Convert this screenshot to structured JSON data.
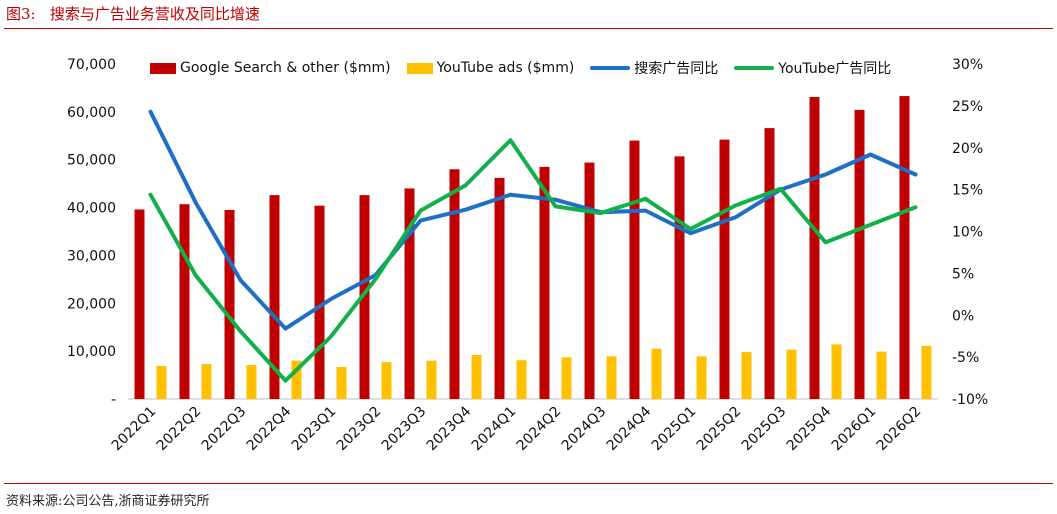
{
  "header": {
    "figure_label": "图3:",
    "title": "搜索与广告业务营收及同比增速"
  },
  "footer": {
    "source": "资料来源:公司公告,浙商证券研究所"
  },
  "colors": {
    "google_search": "#c00000",
    "youtube_ads": "#ffc000",
    "search_yoy": "#1f6fc5",
    "youtube_yoy": "#13b04a",
    "accent": "#c00000"
  },
  "chart_data": {
    "type": "bar",
    "categories": [
      "2022Q1",
      "2022Q2",
      "2022Q3",
      "2022Q4",
      "2023Q1",
      "2023Q2",
      "2023Q3",
      "2023Q4",
      "2024Q1",
      "2024Q2",
      "2024Q3",
      "2024Q4",
      "2025Q1",
      "2025Q2",
      "2025Q3",
      "2025Q4",
      "2026Q1",
      "2026Q2"
    ],
    "series": [
      {
        "name": "Google Search & other ($mm)",
        "type": "bar",
        "axis": "left",
        "values": [
          39600,
          40700,
          39500,
          42600,
          40400,
          42600,
          44000,
          48000,
          46200,
          48500,
          49400,
          54000,
          50700,
          54200,
          56600,
          63100,
          60400,
          63300
        ]
      },
      {
        "name": "YouTube ads ($mm)",
        "type": "bar",
        "axis": "left",
        "values": [
          6900,
          7300,
          7100,
          8000,
          6700,
          7700,
          8000,
          9200,
          8100,
          8700,
          8900,
          10500,
          8900,
          9800,
          10300,
          11400,
          9900,
          11100
        ]
      },
      {
        "name": "搜索广告同比",
        "type": "line",
        "axis": "right",
        "values": [
          24.3,
          13.5,
          4.2,
          -1.6,
          1.9,
          4.8,
          11.3,
          12.6,
          14.4,
          13.8,
          12.3,
          12.5,
          9.8,
          11.7,
          15.0,
          16.8,
          19.2,
          16.8
        ]
      },
      {
        "name": "YouTube广告同比",
        "type": "line",
        "axis": "right",
        "values": [
          14.4,
          4.8,
          -1.9,
          -7.8,
          -2.6,
          4.3,
          12.5,
          15.5,
          20.9,
          13.0,
          12.2,
          13.9,
          10.3,
          13.1,
          15.1,
          8.7,
          10.8,
          12.9
        ]
      }
    ],
    "left_axis": {
      "min": 0,
      "max": 70000,
      "ticks": [
        {
          "v": 0,
          "label": "-"
        },
        {
          "v": 10000,
          "label": "10,000"
        },
        {
          "v": 20000,
          "label": "20,000"
        },
        {
          "v": 30000,
          "label": "30,000"
        },
        {
          "v": 40000,
          "label": "40,000"
        },
        {
          "v": 50000,
          "label": "50,000"
        },
        {
          "v": 60000,
          "label": "60,000"
        },
        {
          "v": 70000,
          "label": "70,000"
        }
      ]
    },
    "right_axis": {
      "min": -10,
      "max": 30,
      "ticks": [
        {
          "v": -10,
          "label": "-10%"
        },
        {
          "v": -5,
          "label": "-5%"
        },
        {
          "v": 0,
          "label": "0%"
        },
        {
          "v": 5,
          "label": "5%"
        },
        {
          "v": 10,
          "label": "10%"
        },
        {
          "v": 15,
          "label": "15%"
        },
        {
          "v": 20,
          "label": "20%"
        },
        {
          "v": 25,
          "label": "25%"
        },
        {
          "v": 30,
          "label": "30%"
        }
      ]
    },
    "grid": false,
    "legend_position": "top"
  }
}
